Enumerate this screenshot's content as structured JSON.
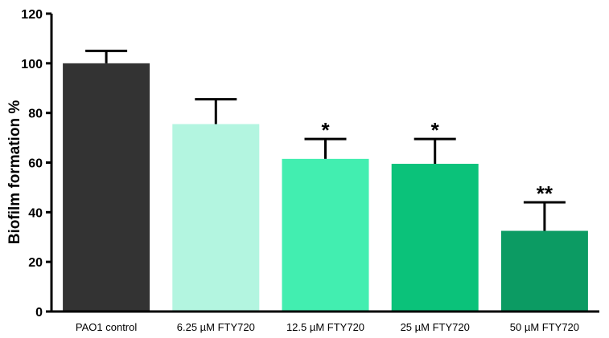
{
  "chart_data": {
    "type": "bar",
    "title": "",
    "xlabel": "",
    "ylabel": "Biofilm formation %",
    "ylim": [
      0,
      120
    ],
    "yticks": [
      "0",
      "20",
      "40",
      "60",
      "80",
      "100",
      "120"
    ],
    "categories": [
      "PAO1 control",
      "6.25 µM FTY720",
      "12.5 µM FTY720",
      "25 µM FTY720",
      "50 µM FTY720"
    ],
    "values": [
      100,
      75.5,
      61.5,
      59.5,
      32.5
    ],
    "errors": [
      5,
      10,
      8,
      10,
      11.5
    ],
    "significance": [
      "",
      "",
      "*",
      "*",
      "**"
    ],
    "colors": [
      "#333333",
      "#b3f5e0",
      "#42eeb0",
      "#0bc27a",
      "#0c9b63"
    ],
    "grid": false,
    "legend": "none"
  }
}
